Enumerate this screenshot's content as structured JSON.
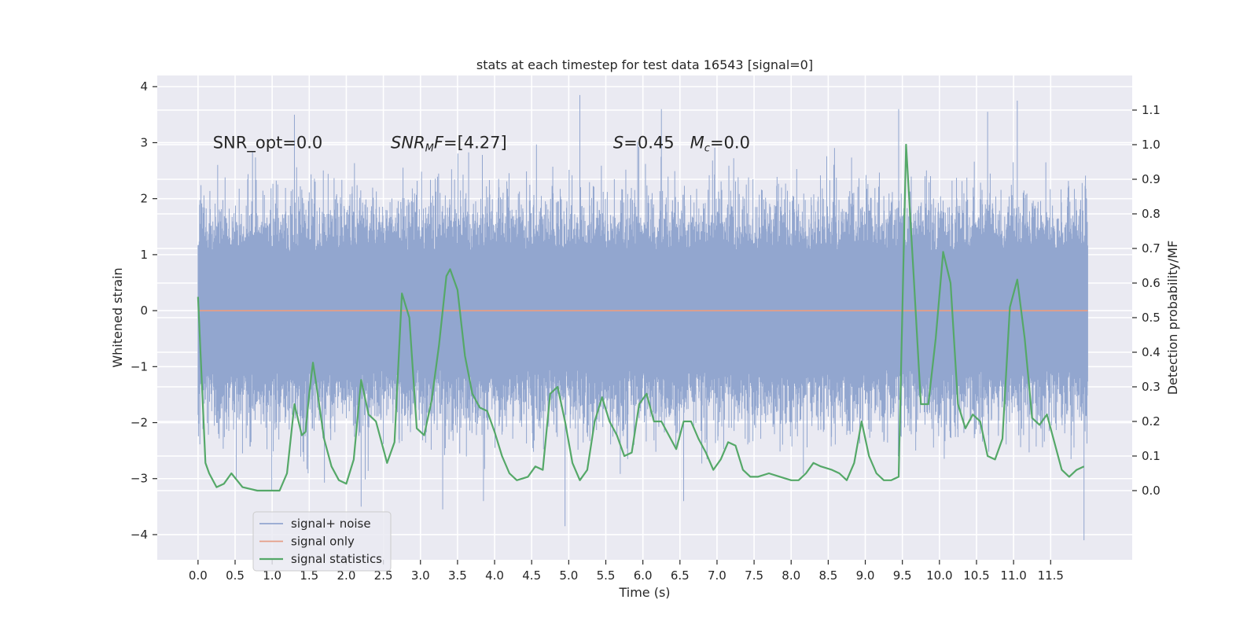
{
  "chart_data": {
    "type": "line",
    "title": "stats at each timestep for test data 16543 [signal=0]",
    "xlabel": "Time (s)",
    "ylabel": "Whitened strain",
    "y2label": "Detection probability/MF",
    "xlim": [
      -0.55,
      12.6
    ],
    "ylim": [
      -4.45,
      4.2
    ],
    "y2lim": [
      -0.2,
      1.2
    ],
    "x_ticks": [
      0.0,
      0.5,
      1.0,
      1.5,
      2.0,
      2.5,
      3.0,
      3.5,
      4.0,
      4.5,
      5.0,
      5.5,
      6.0,
      6.5,
      7.0,
      7.5,
      8.0,
      8.5,
      9.0,
      9.5,
      10.0,
      10.5,
      11.0,
      11.5
    ],
    "x_tick_labels": [
      "0.0",
      "0.5",
      "1.0",
      "1.5",
      "2.0",
      "2.5",
      "3.0",
      "3.5",
      "4.0",
      "4.5",
      "5.0",
      "5.5",
      "6.0",
      "6.5",
      "7.0",
      "7.5",
      "8.0",
      "8.5",
      "9.0",
      "9.5",
      "10.0",
      "10.5",
      "11.0",
      "11.5"
    ],
    "y_ticks": [
      4,
      3,
      2,
      1,
      0,
      -1,
      -2,
      -3,
      -4
    ],
    "y_tick_labels": [
      "4",
      "3",
      "2",
      "1",
      "0",
      "−1",
      "−2",
      "−3",
      "−4"
    ],
    "y2_ticks": [
      1.1,
      1.0,
      0.9,
      0.8,
      0.7,
      0.6,
      0.5,
      0.4,
      0.3,
      0.2,
      0.1,
      0.0
    ],
    "y2_tick_labels": [
      "1.1",
      "1.0",
      "0.9",
      "0.8",
      "0.7",
      "0.6",
      "0.5",
      "0.4",
      "0.3",
      "0.2",
      "0.1",
      "0.0"
    ],
    "grid": true,
    "background": "#eaeaf2",
    "annotations": [
      {
        "text": "SNR_opt=0.0",
        "x": 0.2,
        "y": 3.0
      },
      {
        "text": "SNR_MF=[4.27]",
        "x": 2.6,
        "y": 3.0
      },
      {
        "text": "S=0.45   M_c=0.0",
        "x": 5.6,
        "y": 3.0
      }
    ],
    "legend": {
      "position": "lower-left",
      "entries": [
        "signal+ noise",
        "signal only",
        "signal statistics"
      ]
    },
    "series": [
      {
        "name": "signal+ noise",
        "axis": "left",
        "color": "#92a6cf",
        "style": "dense-noise",
        "x_range": [
          0.0,
          12.0
        ],
        "typical_range": [
          -1.9,
          2.2
        ],
        "extremes": [
          -4.1,
          3.85
        ]
      },
      {
        "name": "signal only",
        "axis": "left",
        "color": "#e59e86",
        "x": [
          0.0,
          12.0
        ],
        "y": [
          0.0,
          0.0
        ]
      },
      {
        "name": "signal statistics",
        "axis": "right",
        "color": "#55a868",
        "x": [
          0.0,
          0.1,
          0.15,
          0.25,
          0.35,
          0.45,
          0.6,
          0.8,
          1.0,
          1.1,
          1.2,
          1.3,
          1.4,
          1.45,
          1.5,
          1.55,
          1.6,
          1.7,
          1.8,
          1.9,
          2.0,
          2.1,
          2.2,
          2.3,
          2.4,
          2.5,
          2.55,
          2.65,
          2.75,
          2.85,
          2.95,
          3.05,
          3.15,
          3.25,
          3.35,
          3.4,
          3.5,
          3.6,
          3.7,
          3.8,
          3.9,
          4.0,
          4.1,
          4.2,
          4.3,
          4.45,
          4.55,
          4.65,
          4.75,
          4.85,
          4.95,
          5.05,
          5.15,
          5.25,
          5.35,
          5.45,
          5.55,
          5.65,
          5.75,
          5.85,
          5.95,
          6.05,
          6.15,
          6.25,
          6.35,
          6.45,
          6.55,
          6.65,
          6.75,
          6.85,
          6.95,
          7.05,
          7.15,
          7.25,
          7.35,
          7.45,
          7.55,
          7.7,
          7.85,
          8.0,
          8.1,
          8.2,
          8.3,
          8.4,
          8.55,
          8.65,
          8.75,
          8.85,
          8.95,
          9.05,
          9.15,
          9.25,
          9.35,
          9.45,
          9.55,
          9.65,
          9.75,
          9.85,
          9.95,
          10.05,
          10.15,
          10.25,
          10.35,
          10.45,
          10.55,
          10.65,
          10.75,
          10.85,
          10.95,
          11.05,
          11.15,
          11.25,
          11.35,
          11.45,
          11.55,
          11.65,
          11.75,
          11.85,
          11.95
        ],
        "y": [
          0.56,
          0.08,
          0.05,
          0.01,
          0.02,
          0.05,
          0.01,
          0.0,
          0.0,
          0.0,
          0.05,
          0.25,
          0.16,
          0.17,
          0.28,
          0.37,
          0.3,
          0.15,
          0.07,
          0.03,
          0.02,
          0.09,
          0.32,
          0.22,
          0.2,
          0.12,
          0.08,
          0.14,
          0.57,
          0.5,
          0.18,
          0.16,
          0.26,
          0.42,
          0.62,
          0.64,
          0.58,
          0.39,
          0.28,
          0.24,
          0.23,
          0.17,
          0.1,
          0.05,
          0.03,
          0.04,
          0.07,
          0.06,
          0.28,
          0.3,
          0.2,
          0.08,
          0.03,
          0.06,
          0.2,
          0.27,
          0.2,
          0.16,
          0.1,
          0.11,
          0.25,
          0.28,
          0.2,
          0.2,
          0.16,
          0.12,
          0.2,
          0.2,
          0.15,
          0.11,
          0.06,
          0.09,
          0.14,
          0.13,
          0.06,
          0.04,
          0.04,
          0.05,
          0.04,
          0.03,
          0.03,
          0.05,
          0.08,
          0.07,
          0.06,
          0.05,
          0.03,
          0.08,
          0.2,
          0.1,
          0.05,
          0.03,
          0.03,
          0.04,
          1.0,
          0.63,
          0.25,
          0.25,
          0.44,
          0.69,
          0.6,
          0.25,
          0.18,
          0.22,
          0.2,
          0.1,
          0.09,
          0.15,
          0.53,
          0.61,
          0.44,
          0.21,
          0.19,
          0.22,
          0.14,
          0.06,
          0.04,
          0.06,
          0.07
        ]
      }
    ]
  }
}
